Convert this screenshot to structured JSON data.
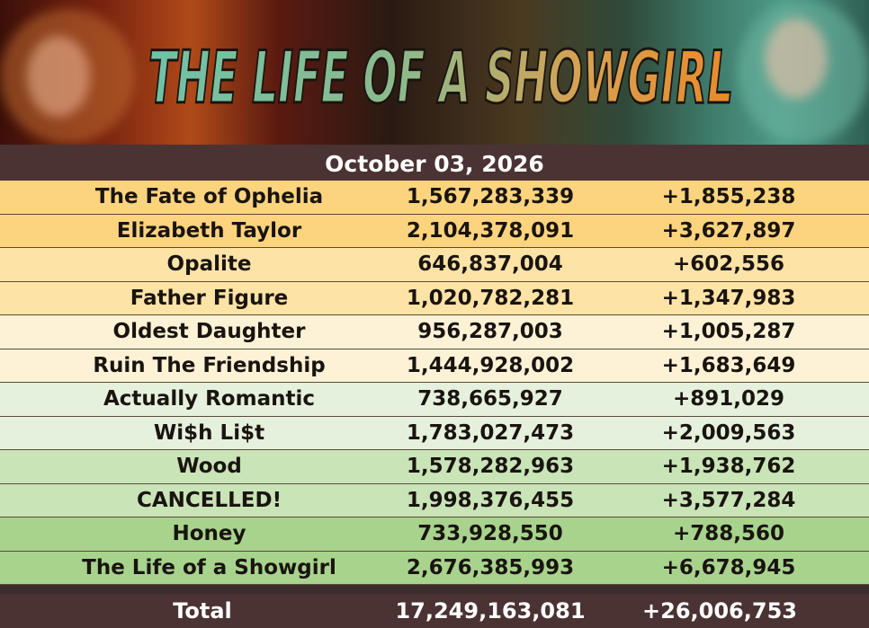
{
  "banner": {
    "title": "THE LIFE OF A SHOWGIRL"
  },
  "date": "October 03, 2026",
  "rows": [
    {
      "song": "The Fate of Ophelia",
      "total": "1,567,283,339",
      "daily": "+1,855,238",
      "color": "#fdd47e"
    },
    {
      "song": "Elizabeth Taylor",
      "total": "2,104,378,091",
      "daily": "+3,627,897",
      "color": "#fdd47e"
    },
    {
      "song": "Opalite",
      "total": "646,837,004",
      "daily": "+602,556",
      "color": "#fde3a6"
    },
    {
      "song": "Father Figure",
      "total": "1,020,782,281",
      "daily": "+1,347,983",
      "color": "#fde3a6"
    },
    {
      "song": "Oldest Daughter",
      "total": "956,287,003",
      "daily": "+1,005,287",
      "color": "#fdf2d6"
    },
    {
      "song": "Ruin The Friendship",
      "total": "1,444,928,002",
      "daily": "+1,683,649",
      "color": "#fdf2d6"
    },
    {
      "song": "Actually Romantic",
      "total": "738,665,927",
      "daily": "+891,029",
      "color": "#e5f1dc"
    },
    {
      "song": "Wi$h Li$t",
      "total": "1,783,027,473",
      "daily": "+2,009,563",
      "color": "#e5f1dc"
    },
    {
      "song": "Wood",
      "total": "1,578,282,963",
      "daily": "+1,938,762",
      "color": "#c9e4b7"
    },
    {
      "song": "CANCELLED!",
      "total": "1,998,376,455",
      "daily": "+3,577,284",
      "color": "#c9e4b7"
    },
    {
      "song": "Honey",
      "total": "733,928,550",
      "daily": "+788,560",
      "color": "#a8d38d"
    },
    {
      "song": "The Life of a Showgirl",
      "total": "2,676,385,993",
      "daily": "+6,678,945",
      "color": "#a8d38d"
    }
  ],
  "total": {
    "label": "Total",
    "total": "17,249,163,081",
    "daily": "+26,006,753"
  }
}
